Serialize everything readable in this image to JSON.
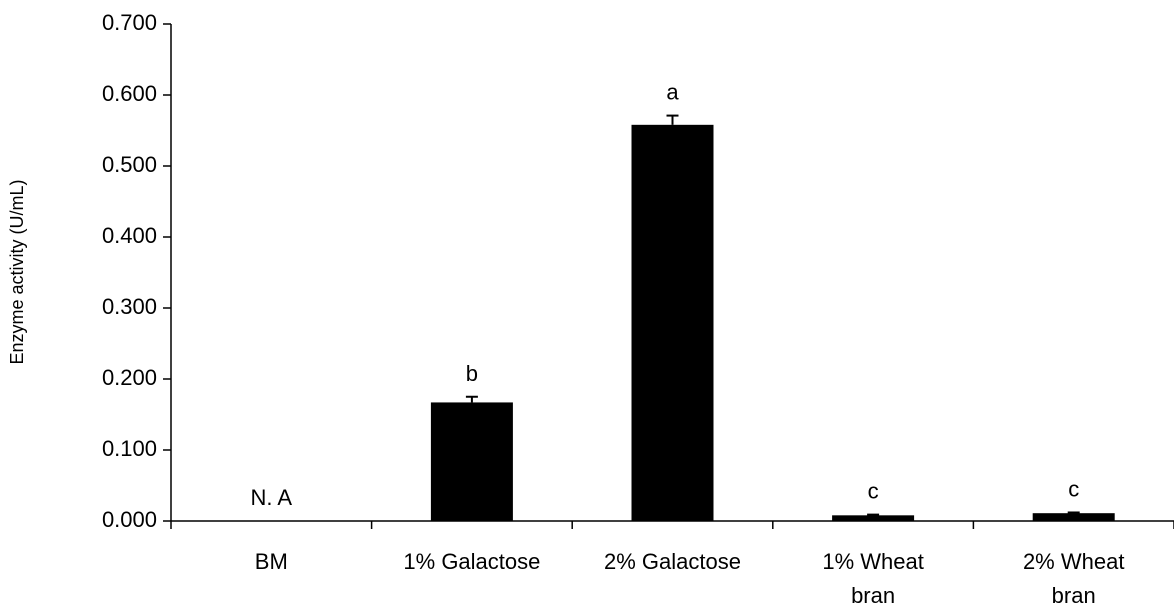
{
  "chart_data": {
    "type": "bar",
    "categories": [
      [
        "BM"
      ],
      [
        "1% Galactose"
      ],
      [
        "2% Galactose"
      ],
      [
        "1% Wheat",
        "bran"
      ],
      [
        "2% Wheat",
        "bran"
      ]
    ],
    "values": [
      0.0,
      0.167,
      0.558,
      0.008,
      0.011
    ],
    "errors": [
      0.0,
      0.008,
      0.013,
      0.001,
      0.001
    ],
    "annotations": [
      "N. A",
      "b",
      "a",
      "c",
      "c"
    ],
    "ylabel": "Enzyme activity (U/mL)",
    "xlabel": "",
    "ylim": [
      0,
      0.7
    ],
    "yticks": [
      "0.000",
      "0.100",
      "0.200",
      "0.300",
      "0.400",
      "0.500",
      "0.600",
      "0.700"
    ],
    "bar_color": "#000000",
    "grid": false
  }
}
